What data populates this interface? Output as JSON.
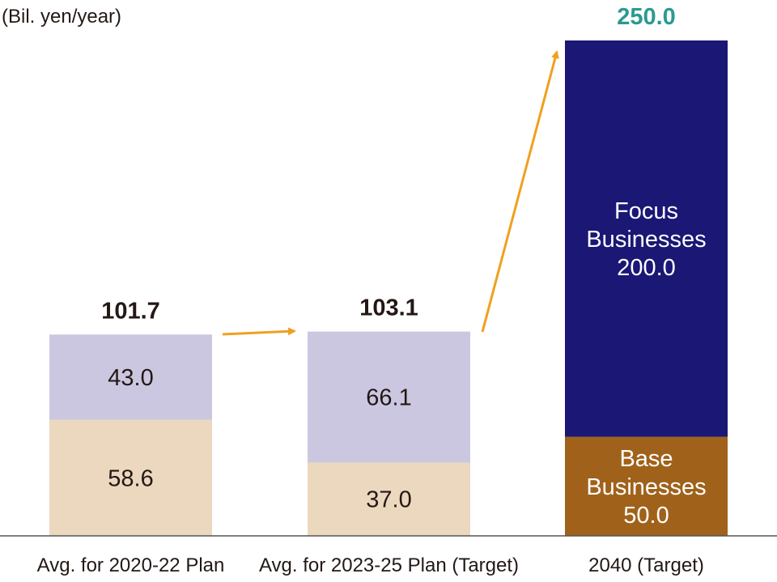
{
  "chart_data": {
    "type": "bar",
    "stacked": true,
    "unit_label": "(Bil. yen/year)",
    "categories": [
      "Avg. for 2020-22 Plan",
      "Avg. for 2023-25 Plan (Target)",
      "2040 (Target)"
    ],
    "series": [
      {
        "name": "",
        "values": [
          58.6,
          37.0,
          null
        ],
        "color": "#ecd8bf",
        "text_color": "#231815"
      },
      {
        "name": "",
        "values": [
          43.0,
          66.1,
          null
        ],
        "color": "#cbc7e0",
        "text_color": "#231815"
      },
      {
        "name": "Base Businesses",
        "values": [
          null,
          null,
          50.0
        ],
        "color": "#a0621a",
        "text_color": "#ffffff"
      },
      {
        "name": "Focus Businesses",
        "values": [
          null,
          null,
          200.0
        ],
        "color": "#1b1775",
        "text_color": "#ffffff"
      }
    ],
    "segment_labels": [
      [
        "58.6",
        "43.0"
      ],
      [
        "37.0",
        "66.1"
      ],
      [
        [
          "Base",
          "Businesses",
          "50.0"
        ],
        [
          "Focus",
          "Businesses",
          "200.0"
        ]
      ]
    ],
    "totals": [
      "101.7",
      "103.1",
      "250.0"
    ],
    "total_colors": [
      "#231815",
      "#231815",
      "#2a9a91"
    ],
    "arrow_color": "#f0a01e",
    "ylim": [
      0,
      250
    ],
    "grid": false,
    "legend": "none"
  }
}
